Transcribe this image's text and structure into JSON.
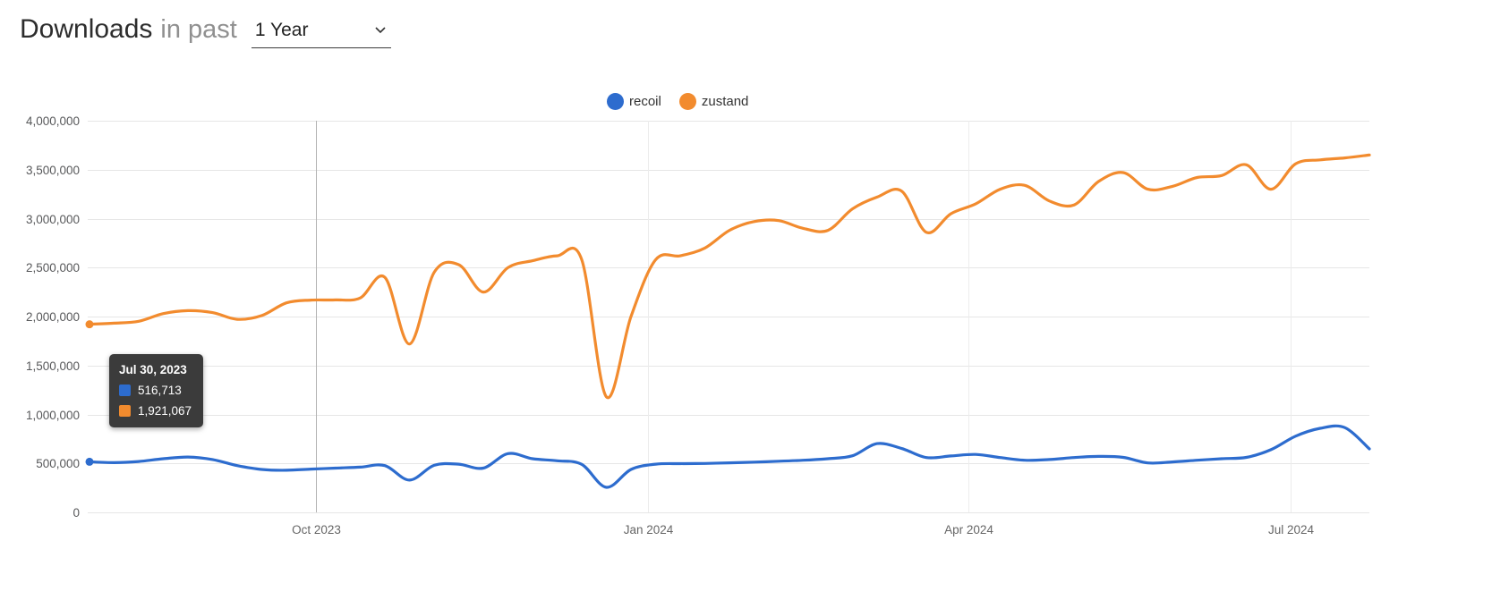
{
  "header": {
    "title": "Downloads",
    "subtitle": "in past",
    "range_selector": {
      "value": "1 Year"
    }
  },
  "legend": {
    "items": [
      {
        "label": "recoil",
        "color": "#2d6cce"
      },
      {
        "label": "zustand",
        "color": "#f28b2e"
      }
    ]
  },
  "tooltip": {
    "date": "Jul 30, 2023",
    "rows": [
      {
        "series": "recoil",
        "color": "#2d6cce",
        "value": "516,713"
      },
      {
        "series": "zustand",
        "color": "#f28b2e",
        "value": "1,921,067"
      }
    ]
  },
  "chart_data": {
    "type": "line",
    "title": "Downloads in past 1 Year",
    "xlabel": "",
    "ylabel": "",
    "legend_position": "top",
    "grid": true,
    "ylim": [
      0,
      4000000
    ],
    "y_ticks": [
      0,
      500000,
      1000000,
      1500000,
      2000000,
      2500000,
      3000000,
      3500000,
      4000000
    ],
    "x_ticks": [
      {
        "label": "Oct 2023",
        "week": 9.2
      },
      {
        "label": "Jan 2024",
        "week": 22.7
      },
      {
        "label": "Apr 2024",
        "week": 35.7
      },
      {
        "label": "Jul 2024",
        "week": 48.8
      }
    ],
    "x_unit": "weeks since Jul 30, 2023",
    "highlight_index": 0,
    "series": [
      {
        "name": "recoil",
        "color": "#2d6cce",
        "values": [
          516713,
          508000,
          520000,
          548000,
          565000,
          540000,
          478000,
          438000,
          430000,
          442000,
          452000,
          462000,
          478000,
          330000,
          480000,
          492000,
          452000,
          600000,
          548000,
          527000,
          490000,
          256000,
          438000,
          492000,
          498000,
          500000,
          506000,
          513000,
          522000,
          532000,
          548000,
          578000,
          702000,
          652000,
          560000,
          576000,
          592000,
          560000,
          532000,
          540000,
          560000,
          572000,
          562000,
          505000,
          515000,
          532000,
          548000,
          562000,
          640000,
          778000,
          858000,
          866000,
          648000
        ]
      },
      {
        "name": "zustand",
        "color": "#f28b2e",
        "values": [
          1921067,
          1932000,
          1952000,
          2030000,
          2060000,
          2040000,
          1972000,
          2010000,
          2140000,
          2168000,
          2170000,
          2190000,
          2400000,
          1720000,
          2450000,
          2530000,
          2250000,
          2500000,
          2570000,
          2620000,
          2580000,
          1180000,
          2000000,
          2580000,
          2620000,
          2700000,
          2880000,
          2970000,
          2980000,
          2900000,
          2880000,
          3100000,
          3220000,
          3280000,
          2860000,
          3050000,
          3150000,
          3300000,
          3340000,
          3180000,
          3140000,
          3380000,
          3470000,
          3300000,
          3330000,
          3420000,
          3440000,
          3550000,
          3300000,
          3560000,
          3600000,
          3620000,
          3650000
        ]
      }
    ]
  }
}
